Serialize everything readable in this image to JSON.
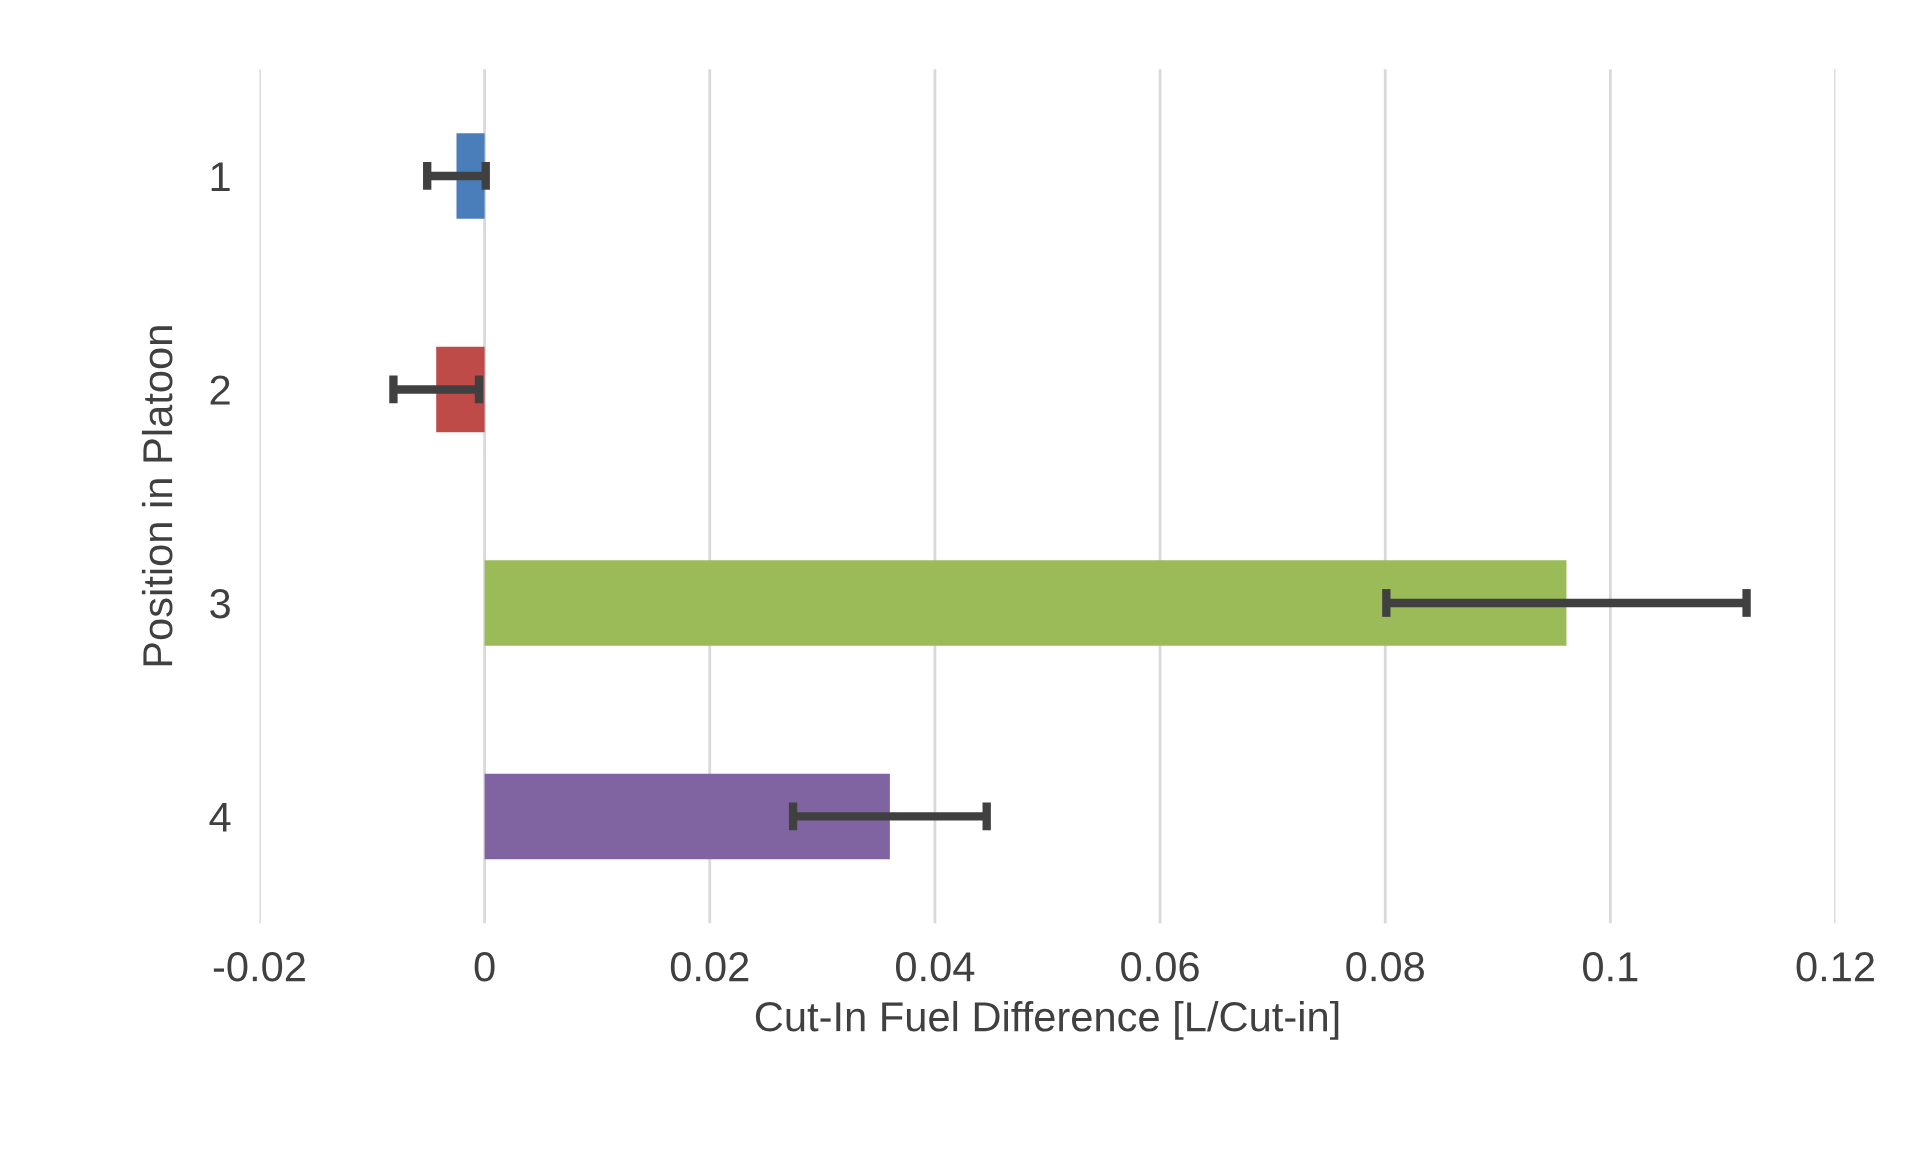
{
  "chart_data": {
    "type": "bar",
    "orientation": "horizontal",
    "categories": [
      "1",
      "2",
      "3",
      "4"
    ],
    "values": [
      -0.0025,
      -0.0043,
      0.0961,
      0.036
    ],
    "errors": [
      0.0026,
      0.0038,
      0.016,
      0.0086
    ],
    "colors": [
      "#4a7ebb",
      "#be4b48",
      "#9bbb59",
      "#8064a2"
    ],
    "xlim": [
      -0.02,
      0.12
    ],
    "xticks": [
      -0.02,
      0,
      0.02,
      0.04,
      0.06,
      0.08,
      0.1,
      0.12
    ],
    "xlabel": "Cut-In Fuel Difference [L/Cut-in]",
    "ylabel": "Position in Platoon",
    "grid": "x"
  }
}
